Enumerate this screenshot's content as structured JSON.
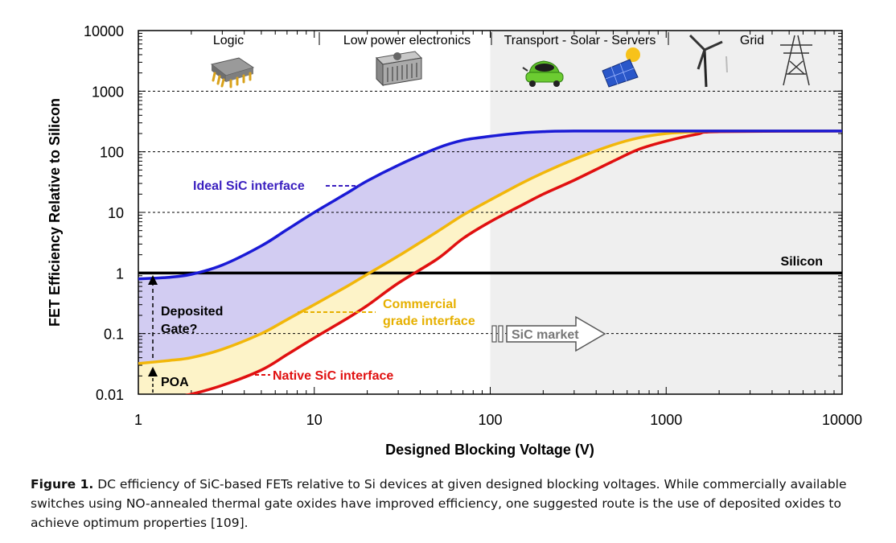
{
  "chart_data": {
    "type": "line",
    "xscale": "log",
    "yscale": "log",
    "xlim": [
      1,
      10000
    ],
    "ylim": [
      0.01,
      10000
    ],
    "xlabel": "Designed Blocking Voltage (V)",
    "ylabel": "FET Efficiency Relative to Silicon",
    "x_ticks": [
      "1",
      "10",
      "100",
      "1000",
      "10000"
    ],
    "y_ticks": [
      "0.01",
      "0.1",
      "1",
      "10",
      "100",
      "1000",
      "10000"
    ],
    "grid": "dashed horizontal lines at decades",
    "series": [
      {
        "name": "Ideal SiC interface",
        "color": "#1a1ad6",
        "x": [
          1,
          1.5,
          2,
          3,
          5,
          7,
          10,
          15,
          20,
          30,
          50,
          70,
          100,
          150,
          200,
          300,
          1000,
          10000
        ],
        "y": [
          0.8,
          0.85,
          0.95,
          1.35,
          2.8,
          5.2,
          10,
          20,
          33,
          60,
          115,
          155,
          180,
          205,
          215,
          220,
          220,
          220
        ]
      },
      {
        "name": "Commercial grade interface",
        "color": "#f2b70a",
        "x": [
          1,
          1.5,
          2,
          3,
          5,
          7,
          10,
          15,
          20,
          30,
          50,
          70,
          100,
          150,
          200,
          300,
          500,
          700,
          1000,
          1500,
          2000,
          10000
        ],
        "y": [
          0.032,
          0.036,
          0.04,
          0.055,
          0.1,
          0.17,
          0.3,
          0.58,
          0.95,
          1.9,
          4.8,
          9,
          16,
          30,
          45,
          75,
          130,
          170,
          200,
          215,
          220,
          220
        ]
      },
      {
        "name": "Native SiC interface",
        "color": "#e01010",
        "x": [
          1.5,
          2,
          3,
          5,
          7,
          10,
          15,
          20,
          30,
          50,
          70,
          100,
          150,
          200,
          300,
          500,
          700,
          1000,
          1500,
          2000,
          10000
        ],
        "y": [
          0.0085,
          0.01,
          0.014,
          0.025,
          0.045,
          0.085,
          0.17,
          0.29,
          0.68,
          1.7,
          3.7,
          7,
          13,
          20,
          34,
          70,
          110,
          150,
          195,
          215,
          220
        ]
      },
      {
        "name": "Silicon",
        "color": "#000000",
        "x": [
          1,
          10000
        ],
        "y": [
          1,
          1
        ]
      }
    ],
    "regions": [
      {
        "label": "Logic",
        "icon": "chip-icon"
      },
      {
        "label": "Low power electronics",
        "icon": "power-supply-icon"
      },
      {
        "label": "Transport - Solar - Servers",
        "icons": [
          "electric-car-icon",
          "solar-panel-icon"
        ]
      },
      {
        "label": "Grid",
        "icons": [
          "wind-turbine-icon",
          "transmission-tower-icon"
        ]
      }
    ],
    "shaded_market_from_x": 100,
    "annotations": {
      "silicon": "Silicon",
      "ideal": "Ideal SiC interface",
      "commercial_line1": "Commercial",
      "commercial_line2": "grade interface",
      "native": "Native SiC interface",
      "deposited_line1": "Deposited",
      "deposited_line2": "Gate?",
      "poa": "POA",
      "market": "SiC market"
    },
    "colors": {
      "ideal_fill": "#d2ccf2",
      "commercial_fill": "#fdf3c8",
      "market_shade": "#efefef",
      "commercial_label": "#e6b000",
      "ideal_label": "#3a1fbf",
      "native_label": "#e01010"
    }
  },
  "caption": {
    "label": "Figure 1.",
    "text": " DC efficiency of SiC-based FETs relative to Si devices at given designed blocking voltages. While commercially available switches using NO-annealed thermal gate oxides have improved efficiency, one suggested route is the use of deposited oxides to achieve optimum properties [109]."
  }
}
